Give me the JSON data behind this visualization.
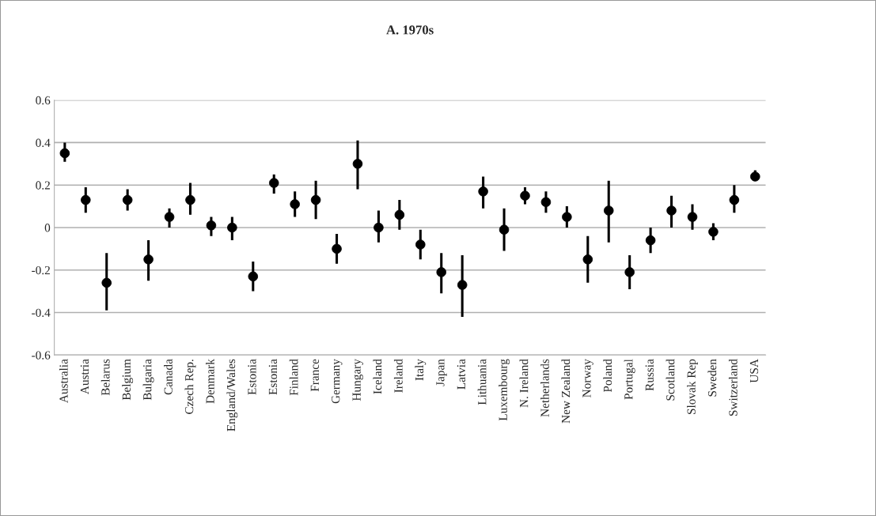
{
  "chart_data": {
    "type": "scatter",
    "title": "A. 1970s",
    "categories": [
      "Australia",
      "Austria",
      "Belarus",
      "Belgium",
      "Bulgaria",
      "Canada",
      "Czech Rep.",
      "Denmark",
      "England/Wales",
      "Estonia",
      "Estonia",
      "Finland",
      "France",
      "Germany",
      "Hungary",
      "Iceland",
      "Ireland",
      "Italy",
      "Japan",
      "Latvia",
      "Lithuania",
      "Luxembourg",
      "N. Ireland",
      "Netherlands",
      "New Zealand",
      "Norway",
      "Poland",
      "Portugal",
      "Russia",
      "Scotland",
      "Slovak Rep",
      "Sweden",
      "Switzerland",
      "USA"
    ],
    "series": [
      {
        "color": "#000000",
        "values": [
          0.35,
          0.13,
          -0.26,
          0.13,
          -0.15,
          0.05,
          0.13,
          0.01,
          0.0,
          -0.23,
          0.21,
          0.11,
          0.13,
          -0.1,
          0.3,
          0.0,
          0.06,
          -0.08,
          -0.21,
          -0.27,
          0.17,
          -0.01,
          0.15,
          0.12,
          0.05,
          -0.15,
          0.08,
          -0.21,
          -0.06,
          0.08,
          0.05,
          -0.02,
          0.13,
          0.24
        ],
        "errors": [
          [
            0.31,
            0.4
          ],
          [
            0.07,
            0.19
          ],
          [
            -0.39,
            -0.12
          ],
          [
            0.08,
            0.18
          ],
          [
            -0.25,
            -0.06
          ],
          [
            0.0,
            0.09
          ],
          [
            0.06,
            0.21
          ],
          [
            -0.04,
            0.05
          ],
          [
            -0.06,
            0.05
          ],
          [
            -0.3,
            -0.16
          ],
          [
            0.16,
            0.25
          ],
          [
            0.05,
            0.17
          ],
          [
            0.04,
            0.22
          ],
          [
            -0.17,
            -0.03
          ],
          [
            0.18,
            0.41
          ],
          [
            -0.07,
            0.08
          ],
          [
            -0.01,
            0.13
          ],
          [
            -0.15,
            -0.01
          ],
          [
            -0.31,
            -0.12
          ],
          [
            -0.42,
            -0.13
          ],
          [
            0.09,
            0.24
          ],
          [
            -0.11,
            0.09
          ],
          [
            0.11,
            0.19
          ],
          [
            0.07,
            0.17
          ],
          [
            0.0,
            0.1
          ],
          [
            -0.26,
            -0.04
          ],
          [
            -0.07,
            0.22
          ],
          [
            -0.29,
            -0.13
          ],
          [
            -0.12,
            0.0
          ],
          [
            0.0,
            0.15
          ],
          [
            -0.01,
            0.11
          ],
          [
            -0.06,
            0.02
          ],
          [
            0.07,
            0.2
          ],
          [
            0.22,
            0.27
          ]
        ]
      }
    ],
    "ylim": [
      -0.6,
      0.6
    ],
    "yticks": [
      {
        "value": -0.6,
        "label": "-0.6"
      },
      {
        "value": -0.4,
        "label": "-0.4"
      },
      {
        "value": -0.2,
        "label": "-0.2"
      },
      0,
      {
        "value": 0.2,
        "label": "0.2"
      },
      {
        "value": 0.4,
        "label": "0.4"
      },
      {
        "value": 0.6,
        "label": "0.6"
      }
    ],
    "grid": "y",
    "marker": "circle"
  }
}
